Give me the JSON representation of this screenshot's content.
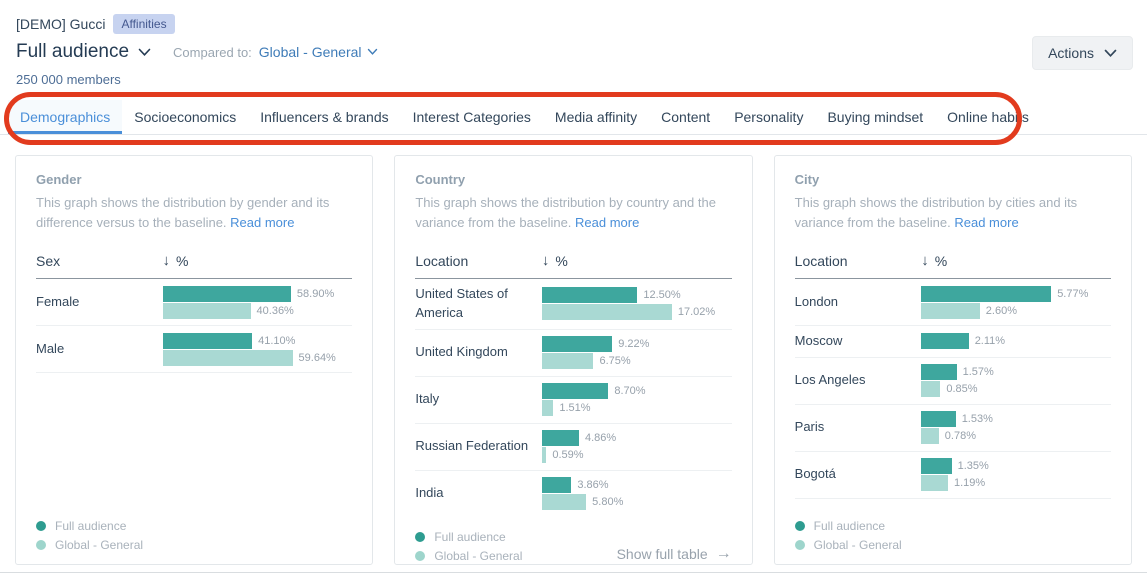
{
  "header": {
    "report_name": "[DEMO] Gucci",
    "badge": "Affinities",
    "audience_selector": "Full audience",
    "compared_to_label": "Compared to:",
    "compared_to_value": "Global - General",
    "members": "250 000 members",
    "actions_label": "Actions"
  },
  "tabs": [
    {
      "label": "Demographics",
      "active": true
    },
    {
      "label": "Socioeconomics",
      "active": false
    },
    {
      "label": "Influencers & brands",
      "active": false
    },
    {
      "label": "Interest Categories",
      "active": false
    },
    {
      "label": "Media affinity",
      "active": false
    },
    {
      "label": "Content",
      "active": false
    },
    {
      "label": "Personality",
      "active": false
    },
    {
      "label": "Buying mindset",
      "active": false
    },
    {
      "label": "Online habits",
      "active": false
    }
  ],
  "legend": {
    "full_audience": "Full audience",
    "baseline": "Global - General"
  },
  "icons": {
    "arrow_down": "↓",
    "arrow_right": "→"
  },
  "colors": {
    "bar_full": "#3EA79E",
    "bar_base": "#A9D9D3",
    "dot_full": "#2E9C90",
    "dot_base": "#9ED5CC",
    "accent_blue": "#4A8FD9",
    "annotation_red": "#E23B1E"
  },
  "cards": [
    {
      "title": "Gender",
      "description": "This graph shows the distribution by gender and its difference versus to the baseline.",
      "read_more": "Read more",
      "col_header": "Sex",
      "value_header": "%",
      "show_full_table": null,
      "rows": [
        {
          "label": "Female",
          "full": 58.9,
          "full_label": "58.90%",
          "base": 40.36,
          "base_label": "40.36%"
        },
        {
          "label": "Male",
          "full": 41.1,
          "full_label": "41.10%",
          "base": 59.64,
          "base_label": "59.64%"
        }
      ]
    },
    {
      "title": "Country",
      "description": "This graph shows the distribution by country and the variance from the baseline.",
      "read_more": "Read more",
      "col_header": "Location",
      "value_header": "%",
      "show_full_table": "Show full table",
      "rows": [
        {
          "label": "United States of America",
          "full": 12.5,
          "full_label": "12.50%",
          "base": 17.02,
          "base_label": "17.02%"
        },
        {
          "label": "United Kingdom",
          "full": 9.22,
          "full_label": "9.22%",
          "base": 6.75,
          "base_label": "6.75%"
        },
        {
          "label": "Italy",
          "full": 8.7,
          "full_label": "8.70%",
          "base": 1.51,
          "base_label": "1.51%"
        },
        {
          "label": "Russian Federation",
          "full": 4.86,
          "full_label": "4.86%",
          "base": 0.59,
          "base_label": "0.59%"
        },
        {
          "label": "India",
          "full": 3.86,
          "full_label": "3.86%",
          "base": 5.8,
          "base_label": "5.80%"
        }
      ]
    },
    {
      "title": "City",
      "description": "This graph shows the distribution by cities and its variance from the baseline.",
      "read_more": "Read more",
      "col_header": "Location",
      "value_header": "%",
      "show_full_table": null,
      "rows": [
        {
          "label": "London",
          "full": 5.77,
          "full_label": "5.77%",
          "base": 2.6,
          "base_label": "2.60%"
        },
        {
          "label": "Moscow",
          "full": 2.11,
          "full_label": "2.11%",
          "base": null,
          "base_label": null
        },
        {
          "label": "Los Angeles",
          "full": 1.57,
          "full_label": "1.57%",
          "base": 0.85,
          "base_label": "0.85%"
        },
        {
          "label": "Paris",
          "full": 1.53,
          "full_label": "1.53%",
          "base": 0.78,
          "base_label": "0.78%"
        },
        {
          "label": "Bogotá",
          "full": 1.35,
          "full_label": "1.35%",
          "base": 1.19,
          "base_label": "1.19%"
        }
      ]
    }
  ]
}
